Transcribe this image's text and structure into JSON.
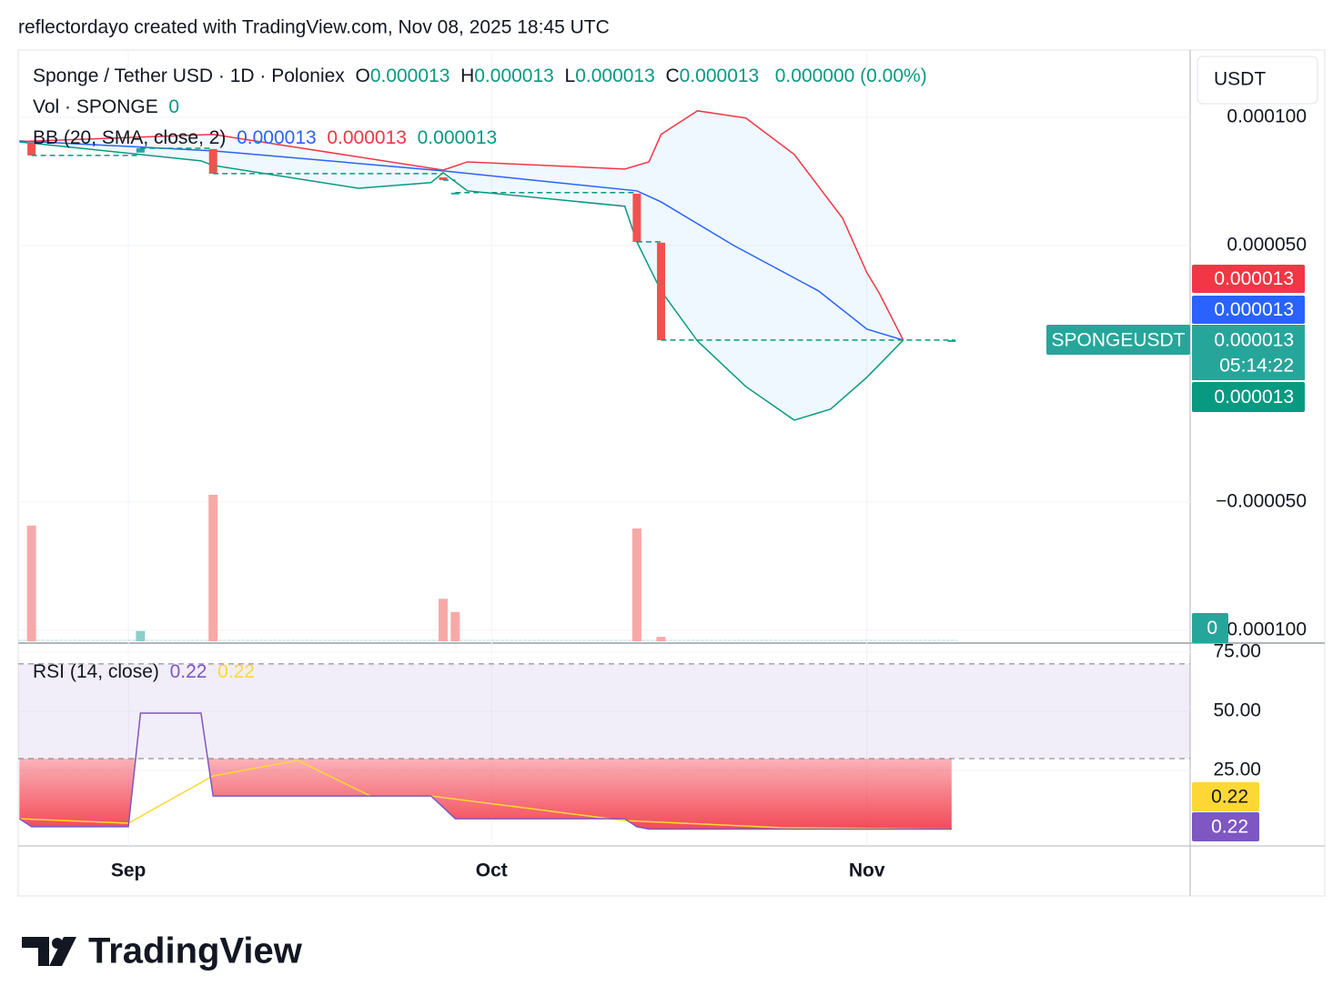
{
  "header": "reflectordayo created with TradingView.com, Nov 08, 2025 18:45 UTC",
  "logo": "TradingView",
  "chart_data": [
    {
      "type": "candlestick",
      "title": "Sponge / Tether USD · 1D · Poloniex",
      "ohlc_legend": [
        {
          "key": "O",
          "value": "0.000013"
        },
        {
          "key": "H",
          "value": "0.000013"
        },
        {
          "key": "L",
          "value": "0.000013"
        },
        {
          "key": "C",
          "value": "0.000013"
        }
      ],
      "change": "0.000000 (0.00%)",
      "currency": "USDT",
      "x": [
        -8,
        1,
        7,
        26,
        27,
        42,
        44,
        68
      ],
      "open": [
        9.01e-05,
        8.62e-05,
        8.76e-05,
        7.66e-05,
        7.06e-05,
        7.02e-05,
        5.11e-05,
        1.31e-05
      ],
      "close": [
        8.51e-05,
        8.79e-05,
        7.8e-05,
        7.55e-05,
        7.06e-05,
        5.14e-05,
        1.31e-05,
        1.31e-05
      ],
      "up_color": "#26a69a",
      "down_color": "#ef5350",
      "xlim": [
        -9.1,
        87.7
      ],
      "xticks": [
        {
          "value": 0,
          "label": "Sep"
        },
        {
          "value": 30,
          "label": "Oct"
        },
        {
          "value": 61,
          "label": "Nov"
        }
      ],
      "ylim": [
        -0.0001043,
        0.0001262
      ],
      "yticks": [
        {
          "value": 0.0001,
          "label": "0.000100"
        },
        {
          "value": 5e-05,
          "label": "0.000050"
        },
        {
          "value": -5e-05,
          "label": "−0.000050"
        },
        {
          "value": -0.0001,
          "label": "−0.000100"
        }
      ],
      "grid": true,
      "bands": {
        "title": "BB (20, SMA, close, 2)",
        "series": [
          {
            "color": "#2962ff",
            "legend_value": "0.000013",
            "tag": "0.000013",
            "x": [
              -9,
              7,
              26,
              42,
              44,
              50,
              57,
              61,
              64
            ],
            "values": [
              9.08e-05,
              8.69e-05,
              7.91e-05,
              7.13e-05,
              6.7e-05,
              5e-05,
              3.23e-05,
              1.74e-05,
              1.31e-05
            ]
          },
          {
            "color": "#f23645",
            "legend_value": "0.000013",
            "tag": "0.000013",
            "x": [
              -9,
              7,
              26,
              28,
              41,
              43,
              44,
              47,
              51,
              55,
              59,
              61,
              62,
              64
            ],
            "values": [
              9.05e-05,
              9.33e-05,
              7.94e-05,
              8.26e-05,
              7.98e-05,
              8.26e-05,
              9.33e-05,
              0.0001025,
              9.97e-05,
              8.55e-05,
              6.06e-05,
              3.94e-05,
              3.16e-05,
              1.31e-05
            ]
          },
          {
            "color": "#089981",
            "legend_value": "0.000013",
            "tag": "0.000013",
            "x": [
              -9,
              6,
              7,
              19,
              25,
              26,
              28,
              41,
              42,
              44,
              47,
              51,
              55,
              58,
              61,
              64
            ],
            "values": [
              9.04e-05,
              8.3e-05,
              8.12e-05,
              7.23e-05,
              7.45e-05,
              7.84e-05,
              7.13e-05,
              6.53e-05,
              5.14e-05,
              3.23e-05,
              1.28e-05,
              -5e-06,
              -1.81e-05,
              -1.38e-05,
              -1.4e-06,
              1.31e-05
            ]
          }
        ]
      },
      "last_price": {
        "symbol": "SPONGEUSDT",
        "label": "0.000013",
        "countdown": "05:14:22"
      }
    },
    {
      "type": "bar",
      "title": "Vol · SPONGE",
      "legend_value": "0",
      "tag": "0",
      "x": [
        -8,
        1,
        7,
        26,
        27,
        42,
        44
      ],
      "values": [
        79,
        7,
        100,
        29,
        20,
        77,
        3
      ],
      "colors": [
        "#f7a9a7",
        "#8dcfc8",
        "#f7a9a7",
        "#f7a9a7",
        "#f7a9a7",
        "#f7a9a7",
        "#f7a9a7"
      ],
      "ylim": [
        0,
        100
      ]
    },
    {
      "type": "line",
      "title": "RSI (14, close)",
      "ylim": [
        -6.9,
        78.8
      ],
      "yticks": [
        {
          "value": 75,
          "label": "75.00"
        },
        {
          "value": 50,
          "label": "50.00"
        },
        {
          "value": 25,
          "label": "25.00"
        }
      ],
      "oversold": 30,
      "overbought": 70,
      "series": [
        {
          "color": "#7e57c2",
          "legend_value": "0.22",
          "tag": "0.22",
          "x": [
            -9,
            -8,
            0,
            1,
            6,
            7,
            25,
            27,
            41,
            42,
            43,
            68
          ],
          "values": [
            4.6,
            1.2,
            1.2,
            49.2,
            49.2,
            14.2,
            14.2,
            4.6,
            4.6,
            1.2,
            0.22,
            0.22
          ]
        },
        {
          "color": "#fdd835",
          "legend_value": "0.22",
          "tag": "0.22",
          "x": [
            -9,
            0,
            7,
            14,
            20,
            25,
            41,
            54,
            68
          ],
          "values": [
            4.6,
            2.7,
            22.7,
            29.2,
            14.2,
            14.2,
            3.8,
            0.8,
            0.22
          ]
        }
      ]
    }
  ]
}
